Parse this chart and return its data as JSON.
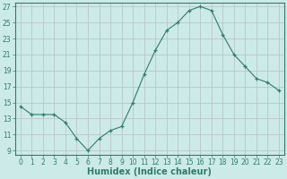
{
  "x": [
    0,
    1,
    2,
    3,
    4,
    5,
    6,
    7,
    8,
    9,
    10,
    11,
    12,
    13,
    14,
    15,
    16,
    17,
    18,
    19,
    20,
    21,
    22,
    23
  ],
  "y": [
    14.5,
    13.5,
    13.5,
    13.5,
    12.5,
    10.5,
    9.0,
    10.5,
    11.5,
    12.0,
    15.0,
    18.5,
    21.5,
    24.0,
    25.0,
    26.5,
    27.0,
    26.5,
    23.5,
    21.0,
    19.5,
    18.0,
    17.5,
    16.5
  ],
  "xlim": [
    -0.5,
    23.5
  ],
  "ylim": [
    8.5,
    27.5
  ],
  "yticks": [
    9,
    11,
    13,
    15,
    17,
    19,
    21,
    23,
    25,
    27
  ],
  "xticks": [
    0,
    1,
    2,
    3,
    4,
    5,
    6,
    7,
    8,
    9,
    10,
    11,
    12,
    13,
    14,
    15,
    16,
    17,
    18,
    19,
    20,
    21,
    22,
    23
  ],
  "xlabel": "Humidex (Indice chaleur)",
  "line_color": "#2e7d6e",
  "marker": "+",
  "bg_color": "#cceae8",
  "grid_color": "#b8c8c4",
  "axis_color": "#2e7d6e",
  "tick_color": "#2e7d6e",
  "label_color": "#2e7d6e",
  "font_size_tick": 5.5,
  "font_size_label": 7
}
